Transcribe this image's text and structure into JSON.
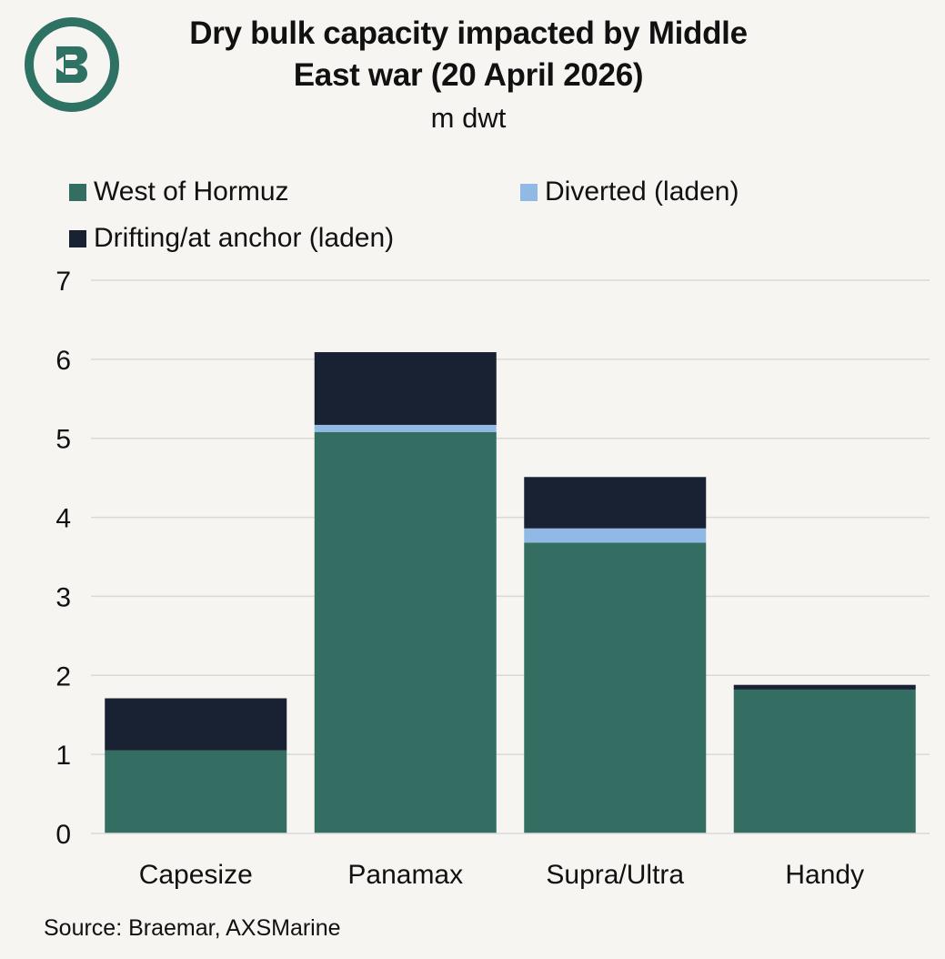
{
  "logo": {
    "name": "braemar-logo",
    "color": "#2e7264"
  },
  "chart_data": {
    "type": "bar",
    "stacked": true,
    "title_lines": [
      "Dry bulk capacity impacted by Middle",
      "East war (20 April 2026)"
    ],
    "subtitle": "m dwt",
    "categories": [
      "Capesize",
      "Panamax",
      "Supra/Ultra",
      "Handy"
    ],
    "series": [
      {
        "name": "West of Hormuz",
        "color": "#346e62",
        "values": [
          1.05,
          5.08,
          3.68,
          1.82
        ]
      },
      {
        "name": "Diverted (laden)",
        "color": "#90b9e6",
        "values": [
          0.0,
          0.09,
          0.18,
          0.0
        ]
      },
      {
        "name": "Drifting/at anchor (laden)",
        "color": "#182232",
        "values": [
          0.66,
          0.92,
          0.65,
          0.06
        ]
      }
    ],
    "ylim": [
      0,
      7
    ],
    "yticks": [
      "0",
      "1",
      "2",
      "3",
      "4",
      "5",
      "6",
      "7"
    ],
    "grid": true,
    "legend_position": "top",
    "source": "Source: Braemar, AXSMarine"
  }
}
